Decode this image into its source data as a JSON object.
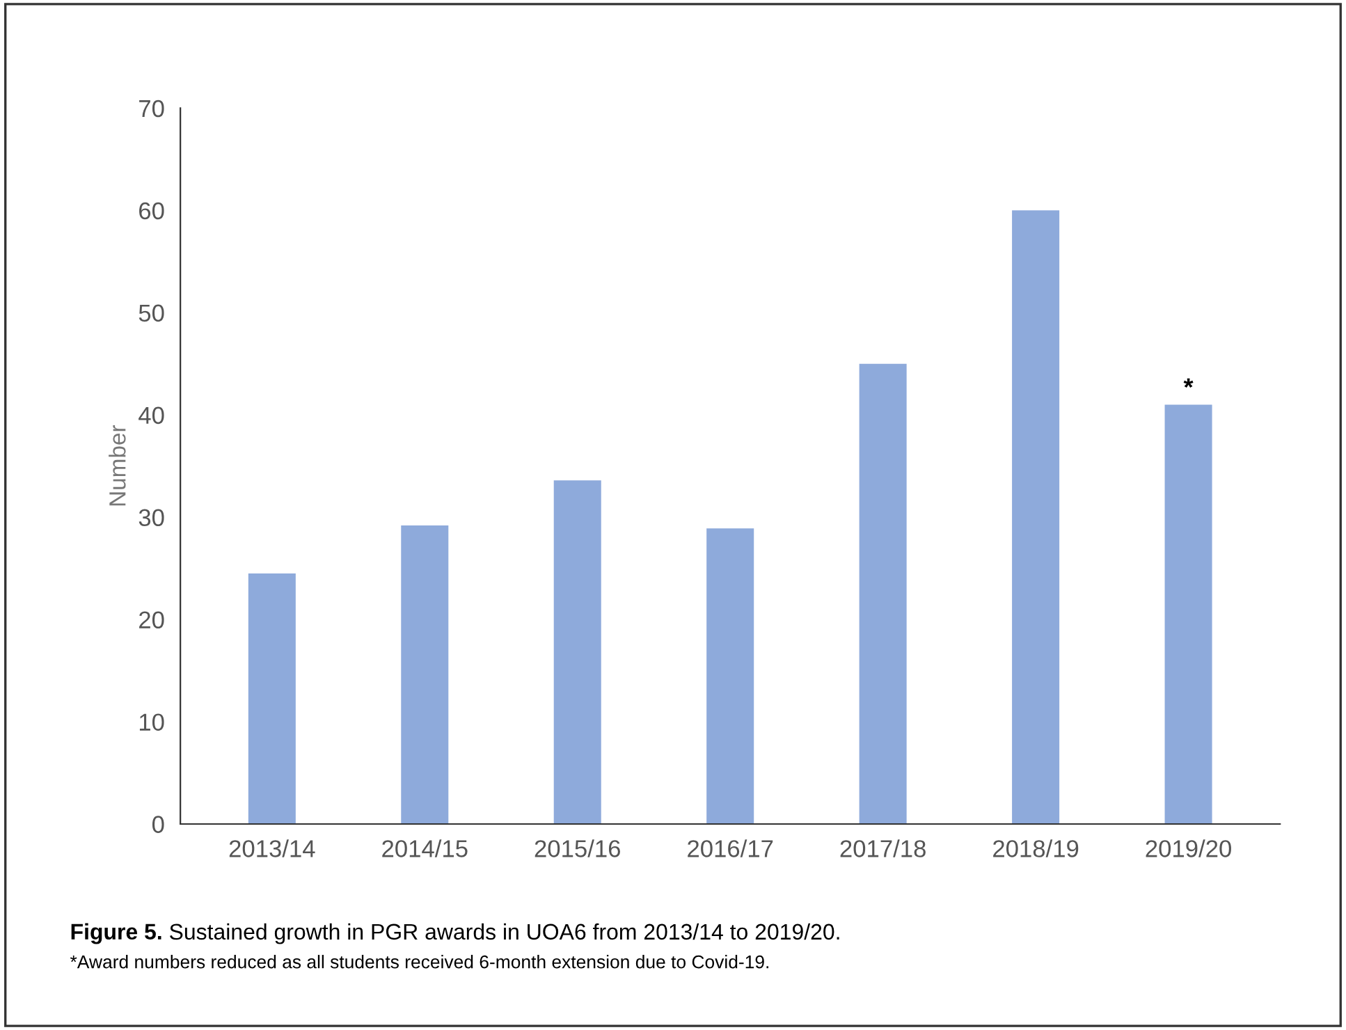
{
  "chart_data": {
    "type": "bar",
    "ylabel": "Number",
    "categories": [
      "2013/14",
      "2014/15",
      "2015/16",
      "2016/17",
      "2017/18",
      "2018/19",
      "2019/20"
    ],
    "values": [
      24.5,
      29.2,
      33.6,
      28.9,
      45,
      60,
      41
    ],
    "color": "#8eaadb",
    "ylim": [
      0,
      70
    ],
    "yticks": [
      0,
      10,
      20,
      30,
      40,
      50,
      60,
      70
    ],
    "grid": false,
    "annotations": [
      {
        "text": "*",
        "x": "2019/20",
        "y": 41
      },
      "Figure 5.",
      "Sustained growth in PGR awards in UOA6 from 2013/14 to 2019/20.",
      "*Award numbers reduced as all students received 6-month extension due to Covid-19."
    ]
  }
}
